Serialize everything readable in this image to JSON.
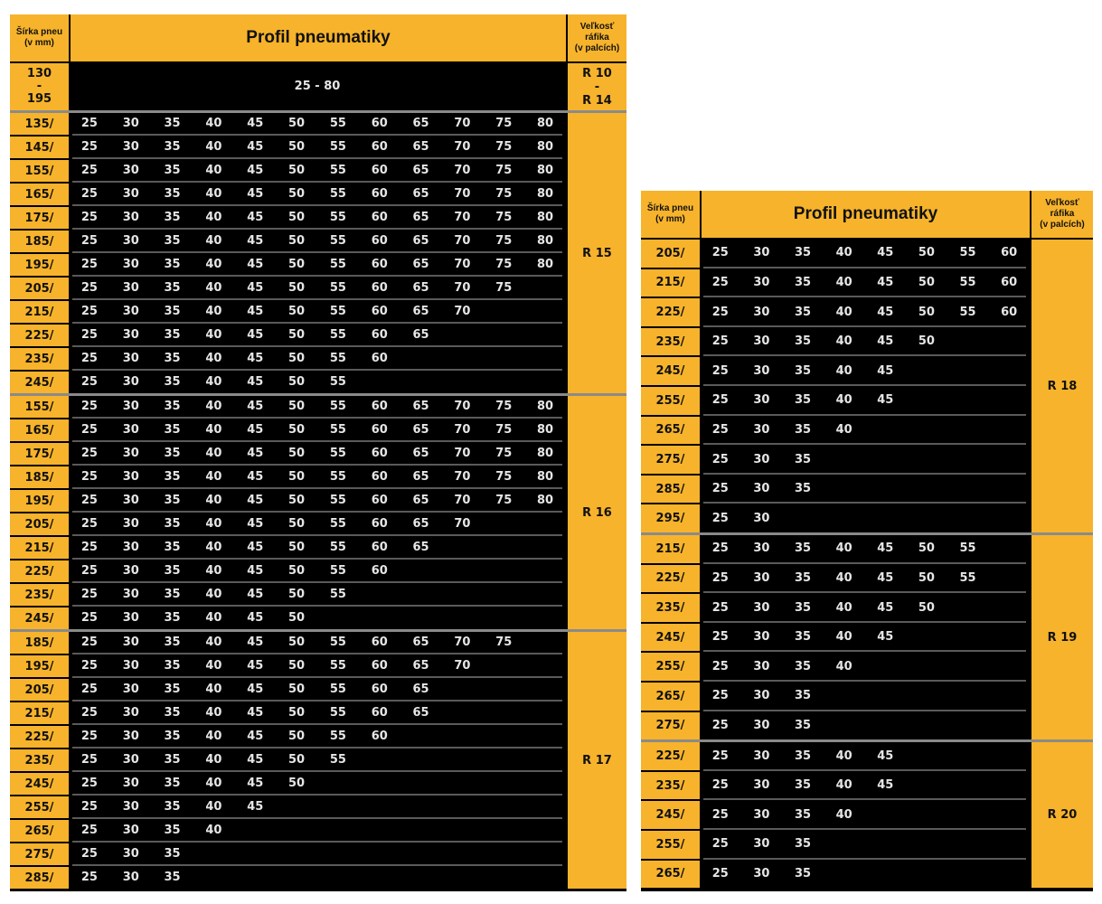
{
  "left": {
    "header": {
      "width_label": "Šírka pneu\n(v mm)",
      "profile_label": "Profil pneumatiky",
      "rim_label": "Veľkosť\nráfika\n(v palcích)"
    },
    "merged_row": {
      "width": "130\n-\n195",
      "value": "25 - 80",
      "rim": "R 10\n-\nR 14"
    },
    "groups": [
      {
        "rim": "R 15",
        "rows": [
          {
            "w": "135/",
            "v": [
              "25",
              "30",
              "35",
              "40",
              "45",
              "50",
              "55",
              "60",
              "65",
              "70",
              "75",
              "80"
            ]
          },
          {
            "w": "145/",
            "v": [
              "25",
              "30",
              "35",
              "40",
              "45",
              "50",
              "55",
              "60",
              "65",
              "70",
              "75",
              "80"
            ]
          },
          {
            "w": "155/",
            "v": [
              "25",
              "30",
              "35",
              "40",
              "45",
              "50",
              "55",
              "60",
              "65",
              "70",
              "75",
              "80"
            ]
          },
          {
            "w": "165/",
            "v": [
              "25",
              "30",
              "35",
              "40",
              "45",
              "50",
              "55",
              "60",
              "65",
              "70",
              "75",
              "80"
            ]
          },
          {
            "w": "175/",
            "v": [
              "25",
              "30",
              "35",
              "40",
              "45",
              "50",
              "55",
              "60",
              "65",
              "70",
              "75",
              "80"
            ]
          },
          {
            "w": "185/",
            "v": [
              "25",
              "30",
              "35",
              "40",
              "45",
              "50",
              "55",
              "60",
              "65",
              "70",
              "75",
              "80"
            ]
          },
          {
            "w": "195/",
            "v": [
              "25",
              "30",
              "35",
              "40",
              "45",
              "50",
              "55",
              "60",
              "65",
              "70",
              "75",
              "80"
            ]
          },
          {
            "w": "205/",
            "v": [
              "25",
              "30",
              "35",
              "40",
              "45",
              "50",
              "55",
              "60",
              "65",
              "70",
              "75"
            ]
          },
          {
            "w": "215/",
            "v": [
              "25",
              "30",
              "35",
              "40",
              "45",
              "50",
              "55",
              "60",
              "65",
              "70"
            ]
          },
          {
            "w": "225/",
            "v": [
              "25",
              "30",
              "35",
              "40",
              "45",
              "50",
              "55",
              "60",
              "65"
            ]
          },
          {
            "w": "235/",
            "v": [
              "25",
              "30",
              "35",
              "40",
              "45",
              "50",
              "55",
              "60"
            ]
          },
          {
            "w": "245/",
            "v": [
              "25",
              "30",
              "35",
              "40",
              "45",
              "50",
              "55"
            ]
          }
        ]
      },
      {
        "rim": "R 16",
        "rows": [
          {
            "w": "155/",
            "v": [
              "25",
              "30",
              "35",
              "40",
              "45",
              "50",
              "55",
              "60",
              "65",
              "70",
              "75",
              "80"
            ]
          },
          {
            "w": "165/",
            "v": [
              "25",
              "30",
              "35",
              "40",
              "45",
              "50",
              "55",
              "60",
              "65",
              "70",
              "75",
              "80"
            ]
          },
          {
            "w": "175/",
            "v": [
              "25",
              "30",
              "35",
              "40",
              "45",
              "50",
              "55",
              "60",
              "65",
              "70",
              "75",
              "80"
            ]
          },
          {
            "w": "185/",
            "v": [
              "25",
              "30",
              "35",
              "40",
              "45",
              "50",
              "55",
              "60",
              "65",
              "70",
              "75",
              "80"
            ]
          },
          {
            "w": "195/",
            "v": [
              "25",
              "30",
              "35",
              "40",
              "45",
              "50",
              "55",
              "60",
              "65",
              "70",
              "75",
              "80"
            ]
          },
          {
            "w": "205/",
            "v": [
              "25",
              "30",
              "35",
              "40",
              "45",
              "50",
              "55",
              "60",
              "65",
              "70"
            ]
          },
          {
            "w": "215/",
            "v": [
              "25",
              "30",
              "35",
              "40",
              "45",
              "50",
              "55",
              "60",
              "65"
            ]
          },
          {
            "w": "225/",
            "v": [
              "25",
              "30",
              "35",
              "40",
              "45",
              "50",
              "55",
              "60"
            ]
          },
          {
            "w": "235/",
            "v": [
              "25",
              "30",
              "35",
              "40",
              "45",
              "50",
              "55"
            ]
          },
          {
            "w": "245/",
            "v": [
              "25",
              "30",
              "35",
              "40",
              "45",
              "50"
            ]
          }
        ]
      },
      {
        "rim": "R 17",
        "rows": [
          {
            "w": "185/",
            "v": [
              "25",
              "30",
              "35",
              "40",
              "45",
              "50",
              "55",
              "60",
              "65",
              "70",
              "75"
            ]
          },
          {
            "w": "195/",
            "v": [
              "25",
              "30",
              "35",
              "40",
              "45",
              "50",
              "55",
              "60",
              "65",
              "70"
            ]
          },
          {
            "w": "205/",
            "v": [
              "25",
              "30",
              "35",
              "40",
              "45",
              "50",
              "55",
              "60",
              "65"
            ]
          },
          {
            "w": "215/",
            "v": [
              "25",
              "30",
              "35",
              "40",
              "45",
              "50",
              "55",
              "60",
              "65"
            ]
          },
          {
            "w": "225/",
            "v": [
              "25",
              "30",
              "35",
              "40",
              "45",
              "50",
              "55",
              "60"
            ]
          },
          {
            "w": "235/",
            "v": [
              "25",
              "30",
              "35",
              "40",
              "45",
              "50",
              "55"
            ]
          },
          {
            "w": "245/",
            "v": [
              "25",
              "30",
              "35",
              "40",
              "45",
              "50"
            ]
          },
          {
            "w": "255/",
            "v": [
              "25",
              "30",
              "35",
              "40",
              "45"
            ]
          },
          {
            "w": "265/",
            "v": [
              "25",
              "30",
              "35",
              "40"
            ]
          },
          {
            "w": "275/",
            "v": [
              "25",
              "30",
              "35"
            ]
          },
          {
            "w": "285/",
            "v": [
              "25",
              "30",
              "35"
            ]
          }
        ]
      }
    ]
  },
  "right": {
    "header": {
      "width_label": "Šírka pneu\n(v mm)",
      "profile_label": "Profil pneumatiky",
      "rim_label": "Veľkosť\nráfika\n(v palcích)"
    },
    "groups": [
      {
        "rim": "R 18",
        "rows": [
          {
            "w": "205/",
            "v": [
              "25",
              "30",
              "35",
              "40",
              "45",
              "50",
              "55",
              "60"
            ]
          },
          {
            "w": "215/",
            "v": [
              "25",
              "30",
              "35",
              "40",
              "45",
              "50",
              "55",
              "60"
            ]
          },
          {
            "w": "225/",
            "v": [
              "25",
              "30",
              "35",
              "40",
              "45",
              "50",
              "55",
              "60"
            ]
          },
          {
            "w": "235/",
            "v": [
              "25",
              "30",
              "35",
              "40",
              "45",
              "50"
            ]
          },
          {
            "w": "245/",
            "v": [
              "25",
              "30",
              "35",
              "40",
              "45"
            ]
          },
          {
            "w": "255/",
            "v": [
              "25",
              "30",
              "35",
              "40",
              "45"
            ]
          },
          {
            "w": "265/",
            "v": [
              "25",
              "30",
              "35",
              "40"
            ]
          },
          {
            "w": "275/",
            "v": [
              "25",
              "30",
              "35"
            ]
          },
          {
            "w": "285/",
            "v": [
              "25",
              "30",
              "35"
            ]
          },
          {
            "w": "295/",
            "v": [
              "25",
              "30"
            ]
          }
        ]
      },
      {
        "rim": "R 19",
        "rows": [
          {
            "w": "215/",
            "v": [
              "25",
              "30",
              "35",
              "40",
              "45",
              "50",
              "55"
            ]
          },
          {
            "w": "225/",
            "v": [
              "25",
              "30",
              "35",
              "40",
              "45",
              "50",
              "55"
            ]
          },
          {
            "w": "235/",
            "v": [
              "25",
              "30",
              "35",
              "40",
              "45",
              "50"
            ]
          },
          {
            "w": "245/",
            "v": [
              "25",
              "30",
              "35",
              "40",
              "45"
            ]
          },
          {
            "w": "255/",
            "v": [
              "25",
              "30",
              "35",
              "40"
            ]
          },
          {
            "w": "265/",
            "v": [
              "25",
              "30",
              "35"
            ]
          },
          {
            "w": "275/",
            "v": [
              "25",
              "30",
              "35"
            ]
          }
        ]
      },
      {
        "rim": "R 20",
        "rows": [
          {
            "w": "225/",
            "v": [
              "25",
              "30",
              "35",
              "40",
              "45"
            ]
          },
          {
            "w": "235/",
            "v": [
              "25",
              "30",
              "35",
              "40",
              "45"
            ]
          },
          {
            "w": "245/",
            "v": [
              "25",
              "30",
              "35",
              "40"
            ]
          },
          {
            "w": "255/",
            "v": [
              "25",
              "30",
              "35"
            ]
          },
          {
            "w": "265/",
            "v": [
              "25",
              "30",
              "35"
            ]
          }
        ]
      }
    ]
  },
  "colors": {
    "accent": "#f7b32b",
    "cell_bg": "#000000",
    "value_text": "#e6e6e6"
  }
}
